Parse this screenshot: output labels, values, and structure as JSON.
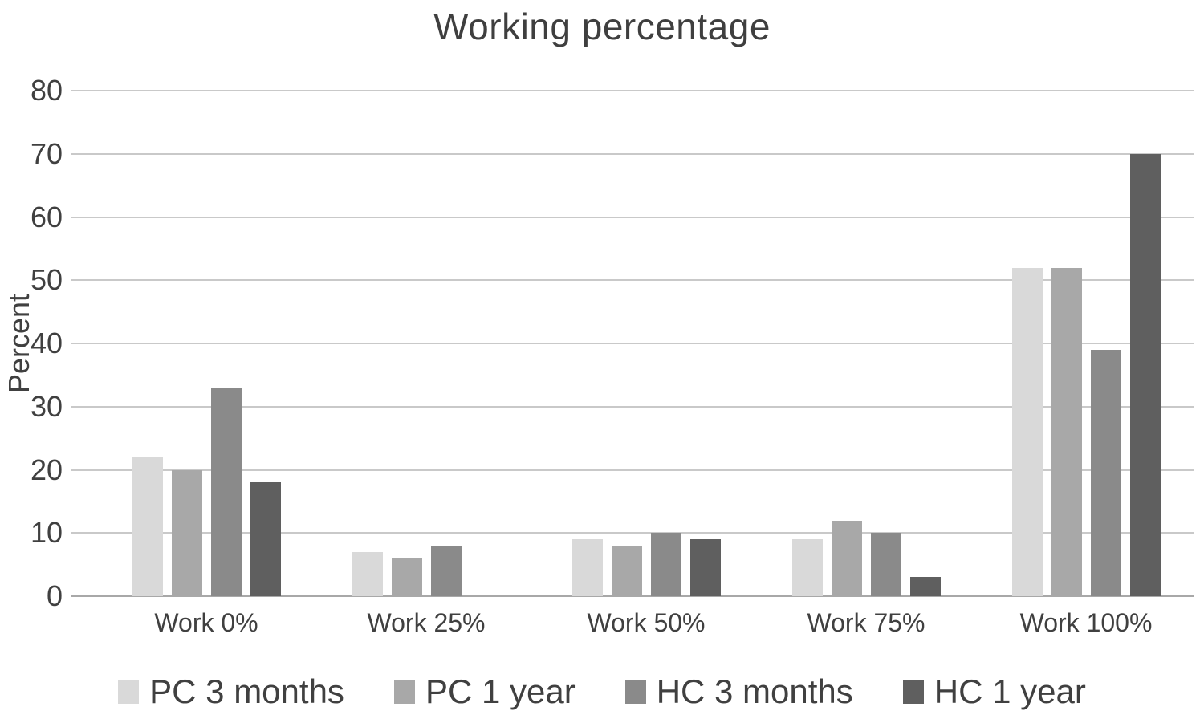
{
  "chart_data": {
    "type": "bar",
    "title": "Working percentage",
    "ylabel": "Percent",
    "xlabel": "",
    "ymin": 0,
    "ymax": 80,
    "yticks": [
      80,
      70,
      60,
      50,
      40,
      30,
      20,
      10,
      0
    ],
    "grid": true,
    "legend_position": "bottom",
    "categories": [
      "Work 0%",
      "Work 25%",
      "Work 50%",
      "Work 75%",
      "Work 100%"
    ],
    "series": [
      {
        "name": "PC 3 months",
        "color": "#d9d9d9",
        "values": [
          22,
          7,
          9,
          9,
          52
        ]
      },
      {
        "name": "PC 1 year",
        "color": "#a8a8a8",
        "values": [
          20,
          6,
          8,
          12,
          52
        ]
      },
      {
        "name": "HC 3 months",
        "color": "#8a8a8a",
        "values": [
          33,
          8,
          10,
          10,
          39
        ]
      },
      {
        "name": "HC 1 year",
        "color": "#5f5f5f",
        "values": [
          18,
          0,
          9,
          3,
          70
        ]
      }
    ],
    "colors": {
      "text": "#404040",
      "title_text": "#3f3f3f",
      "gridline": "#c9c9c9",
      "axis_line": "#a8a8a8",
      "background": "#ffffff"
    }
  }
}
